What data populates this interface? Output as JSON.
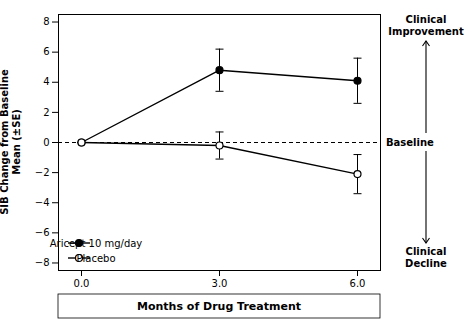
{
  "chart_data": {
    "type": "line",
    "x": [
      0,
      3,
      6
    ],
    "series": [
      {
        "name": "Aricept 10 mg/day",
        "color": "black",
        "marker": "circle",
        "line_style": "solid",
        "values": [
          0.0,
          4.8,
          4.1
        ],
        "errors": [
          0.0,
          1.4,
          1.5
        ]
      },
      {
        "name": "Placebo",
        "color": "black",
        "marker": "circle_open",
        "line_style": "solid",
        "values": [
          0.0,
          -0.2,
          -2.1
        ],
        "errors": [
          0.0,
          0.9,
          1.3
        ]
      }
    ],
    "xlim": [
      -0.5,
      6.5
    ],
    "ylim": [
      -8.5,
      8.5
    ],
    "xticks": [
      0,
      3,
      6
    ],
    "yticks": [
      -8,
      -6,
      -4,
      -2,
      0,
      2,
      4,
      6,
      8
    ],
    "xlabel": "Months of Drug Treatment",
    "ylabel": "SIB Change from Baseline\nMean (±SE)",
    "baseline": {
      "y": 0,
      "label": "Baseline",
      "line_style": "dashed",
      "color": "black"
    },
    "annotations": [
      {
        "text": "Clinical\nImprovement",
        "direction": "up"
      },
      {
        "text": "Clinical\nDecline",
        "direction": "down"
      }
    ],
    "legend": "lower left",
    "grid": false
  }
}
